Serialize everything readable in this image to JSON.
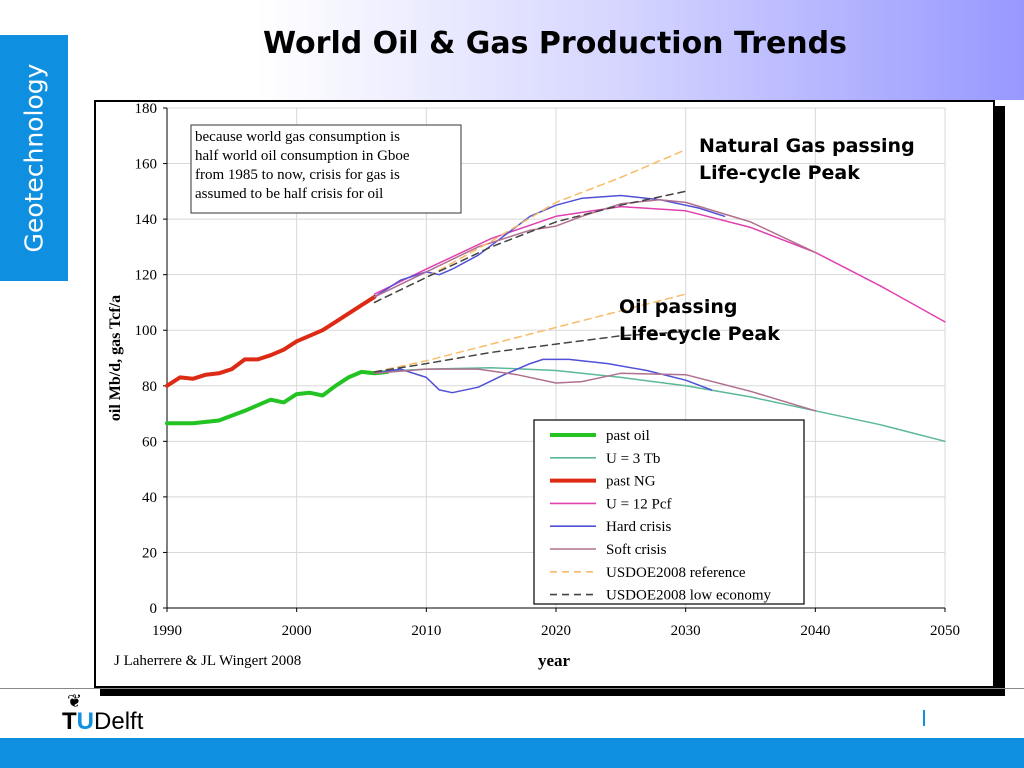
{
  "slide": {
    "title": "World Oil & Gas Production Trends",
    "side_tab": "Geotechnology",
    "logo_text": "TUDelft",
    "colors": {
      "tab": "#0f8fe0",
      "footer": "#0f8fe0",
      "header_gradient_end": "#9898ff"
    }
  },
  "chart_data": {
    "type": "line",
    "title": "",
    "xlabel": "year",
    "ylabel": "oil Mb/d, gas Tcf/a",
    "xlim": [
      1990,
      2050
    ],
    "ylim": [
      0,
      180
    ],
    "xticks": [
      1990,
      2000,
      2010,
      2020,
      2030,
      2040,
      2050
    ],
    "yticks": [
      0,
      20,
      40,
      60,
      80,
      100,
      120,
      140,
      160,
      180
    ],
    "grid": true,
    "legend_position": "bottom-right",
    "source": "J Laherrere & JL Wingert 2008",
    "note_lines": [
      "because world gas consumption is",
      "half world oil consumption in Gboe",
      "from 1985 to now,  crisis for gas is",
      "assumed to be half crisis for oil"
    ],
    "annotations": [
      {
        "lines": [
          "Natural Gas passing",
          "Life-cycle Peak"
        ]
      },
      {
        "lines": [
          "Oil passing",
          "Life-cycle Peak"
        ]
      }
    ],
    "series": [
      {
        "name": "past oil",
        "color": "#22c322",
        "width": 4,
        "dash": "",
        "points": [
          [
            1990,
            66.5
          ],
          [
            1992,
            66.5
          ],
          [
            1994,
            67.5
          ],
          [
            1996,
            71
          ],
          [
            1997,
            73
          ],
          [
            1998,
            75
          ],
          [
            1999,
            74
          ],
          [
            2000,
            77
          ],
          [
            2001,
            77.5
          ],
          [
            2002,
            76.5
          ],
          [
            2003,
            80
          ],
          [
            2004,
            83
          ],
          [
            2005,
            85
          ],
          [
            2006,
            84.5
          ],
          [
            2007,
            85
          ]
        ]
      },
      {
        "name": "U = 3 Tb",
        "color": "#5bb89a",
        "width": 1.5,
        "dash": "",
        "points": [
          [
            2006,
            85
          ],
          [
            2010,
            86
          ],
          [
            2015,
            86.5
          ],
          [
            2020,
            85.5
          ],
          [
            2025,
            83
          ],
          [
            2030,
            80
          ],
          [
            2035,
            76
          ],
          [
            2040,
            71
          ],
          [
            2045,
            66
          ],
          [
            2050,
            60
          ]
        ]
      },
      {
        "name": "past NG",
        "color": "#dc2a14",
        "width": 4,
        "dash": "",
        "points": [
          [
            1990,
            80
          ],
          [
            1991,
            83
          ],
          [
            1992,
            82.5
          ],
          [
            1993,
            84
          ],
          [
            1994,
            84.5
          ],
          [
            1995,
            86
          ],
          [
            1996,
            89.5
          ],
          [
            1997,
            89.5
          ],
          [
            1998,
            91
          ],
          [
            1999,
            93
          ],
          [
            2000,
            96
          ],
          [
            2001,
            98
          ],
          [
            2002,
            100
          ],
          [
            2003,
            103
          ],
          [
            2004,
            106
          ],
          [
            2005,
            109
          ],
          [
            2006,
            112
          ]
        ]
      },
      {
        "name": "U = 12 Pcf",
        "color": "#e040b0",
        "width": 1.5,
        "dash": "",
        "points": [
          [
            2006,
            113
          ],
          [
            2010,
            122
          ],
          [
            2015,
            133
          ],
          [
            2020,
            141
          ],
          [
            2025,
            144.5
          ],
          [
            2030,
            143
          ],
          [
            2035,
            137
          ],
          [
            2040,
            128
          ],
          [
            2045,
            116
          ],
          [
            2050,
            103
          ]
        ]
      },
      {
        "name": "Hard crisis",
        "color": "#5050d8",
        "width": 1.5,
        "dash": "",
        "points": [
          [
            2006,
            112
          ],
          [
            2008,
            118
          ],
          [
            2010,
            121
          ],
          [
            2011,
            120
          ],
          [
            2012,
            122
          ],
          [
            2014,
            127
          ],
          [
            2016,
            134
          ],
          [
            2018,
            141
          ],
          [
            2020,
            145
          ],
          [
            2022,
            147.5
          ],
          [
            2025,
            148.5
          ],
          [
            2028,
            147
          ],
          [
            2031,
            144
          ],
          [
            2033,
            141
          ],
          [
            2006,
            84.5
          ],
          [
            2008,
            86
          ],
          [
            2010,
            83
          ],
          [
            2011,
            78.5
          ],
          [
            2012,
            77.5
          ],
          [
            2014,
            79.5
          ],
          [
            2016,
            84
          ],
          [
            2018,
            88
          ],
          [
            2019,
            89.5
          ],
          [
            2021,
            89.5
          ],
          [
            2024,
            88
          ],
          [
            2027,
            85.5
          ],
          [
            2030,
            82
          ],
          [
            2032,
            78.5
          ]
        ],
        "break_after": 14
      },
      {
        "name": "Soft crisis",
        "color": "#b0708f",
        "width": 1.5,
        "dash": "",
        "points": [
          [
            2006,
            112
          ],
          [
            2010,
            121
          ],
          [
            2014,
            130
          ],
          [
            2018,
            136
          ],
          [
            2020,
            137.5
          ],
          [
            2022,
            141
          ],
          [
            2025,
            145.5
          ],
          [
            2028,
            147
          ],
          [
            2030,
            146
          ],
          [
            2035,
            139
          ],
          [
            2040,
            128
          ],
          [
            2006,
            84.5
          ],
          [
            2010,
            86
          ],
          [
            2014,
            86
          ],
          [
            2017,
            84
          ],
          [
            2020,
            81
          ],
          [
            2022,
            81.5
          ],
          [
            2025,
            84.5
          ],
          [
            2030,
            84
          ],
          [
            2035,
            78
          ],
          [
            2040,
            71
          ]
        ],
        "break_after": 11
      },
      {
        "name": "USDOE2008 reference",
        "color": "#f8bb68",
        "width": 1.5,
        "dash": "7,5",
        "points": [
          [
            2006,
            110
          ],
          [
            2010,
            119
          ],
          [
            2015,
            132
          ],
          [
            2020,
            146
          ],
          [
            2025,
            155
          ],
          [
            2030,
            165
          ],
          [
            2006,
            85
          ],
          [
            2010,
            89
          ],
          [
            2015,
            95
          ],
          [
            2020,
            101
          ],
          [
            2025,
            107
          ],
          [
            2030,
            113
          ]
        ],
        "break_after": 6
      },
      {
        "name": "USDOE2008 low economy",
        "color": "#444444",
        "width": 1.5,
        "dash": "7,5",
        "points": [
          [
            2006,
            110
          ],
          [
            2010,
            119
          ],
          [
            2015,
            130
          ],
          [
            2020,
            139
          ],
          [
            2025,
            145
          ],
          [
            2030,
            150
          ],
          [
            2006,
            85
          ],
          [
            2010,
            88
          ],
          [
            2015,
            92
          ],
          [
            2020,
            95
          ],
          [
            2025,
            98
          ],
          [
            2030,
            99.5
          ]
        ],
        "break_after": 6
      }
    ]
  }
}
